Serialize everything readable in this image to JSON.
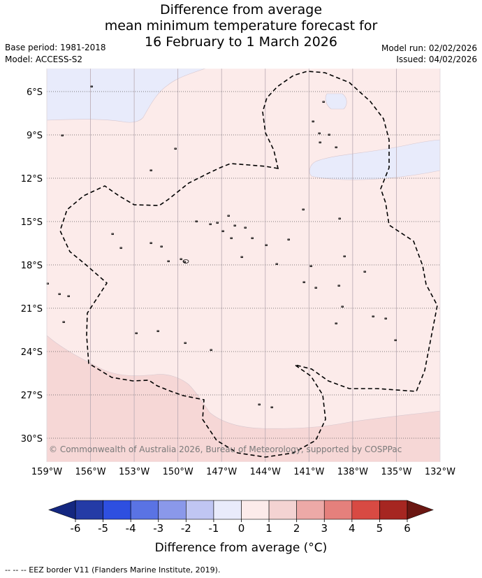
{
  "title_lines": [
    "Difference from average",
    "mean minimum temperature forecast for",
    "16 February to 1 March 2026"
  ],
  "meta": {
    "base_period": "Base period: 1981-2018",
    "model": "Model: ACCESS-S2",
    "model_run": "Model run: 02/02/2026",
    "issued": "Issued: 04/02/2026"
  },
  "map": {
    "lat_labels": [
      "6°S",
      "9°S",
      "12°S",
      "15°S",
      "18°S",
      "21°S",
      "24°S",
      "27°S",
      "30°S"
    ],
    "lon_labels": [
      "159°W",
      "156°W",
      "153°W",
      "150°W",
      "147°W",
      "144°W",
      "141°W",
      "138°W",
      "135°W",
      "132°W"
    ],
    "copyright": "© Commonwealth of Australia 2026, Bureau of Meteorology, supported by COSPPac",
    "regions": {
      "cool": "#e8ebfb",
      "slightly_warm": "#fcebea",
      "warm": "#f6d7d6"
    }
  },
  "colorbar": {
    "ticks": [
      "-6",
      "-5",
      "-4",
      "-3",
      "-2",
      "-1",
      "0",
      "1",
      "2",
      "3",
      "4",
      "5",
      "6"
    ],
    "colors": [
      "#243ba6",
      "#2e4fe0",
      "#5a73e4",
      "#8a98ea",
      "#c0c6f3",
      "#e9ebfb",
      "#fcebea",
      "#f4d3d2",
      "#eda9a7",
      "#e5807c",
      "#d84a43",
      "#a62621"
    ],
    "ext_low": "#142780",
    "ext_high": "#6b1712",
    "label": "Difference from average (°C)"
  },
  "footer": "--  --  -- EEZ border V11 (Flanders Marine Institute, 2019)."
}
